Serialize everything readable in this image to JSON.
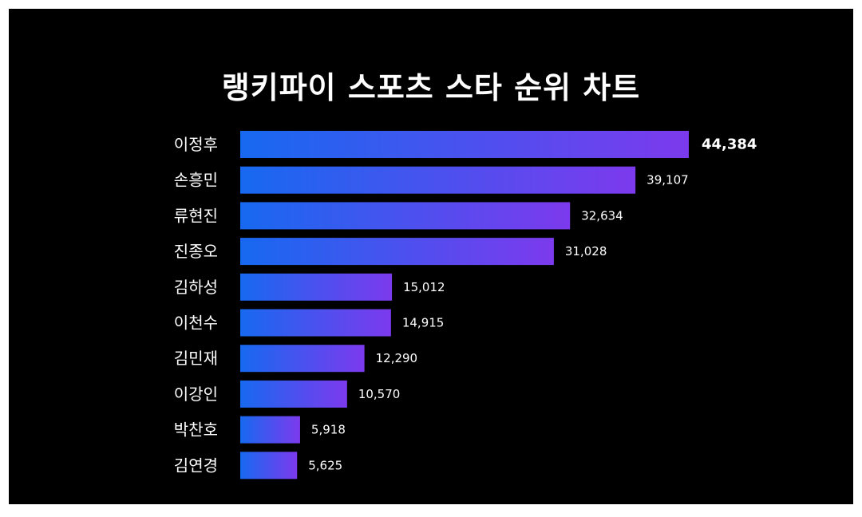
{
  "chart_data": {
    "type": "bar",
    "orientation": "horizontal",
    "title": "랭키파이 스포츠 스타 순위 차트",
    "categories": [
      "이정후",
      "손흥민",
      "류현진",
      "진종오",
      "김하성",
      "이천수",
      "김민재",
      "이강인",
      "박찬호",
      "김연경"
    ],
    "values": [
      44384,
      39107,
      32634,
      31028,
      15012,
      14915,
      12290,
      10570,
      5918,
      5625
    ],
    "value_labels": [
      "44,384",
      "39,107",
      "32,634",
      "31,028",
      "15,012",
      "14,915",
      "12,290",
      "10,570",
      "5,918",
      "5,625"
    ],
    "xlim": [
      0,
      44384
    ],
    "grid": false,
    "gradient": [
      "#1769f0",
      "#7c3aed"
    ],
    "background_color": "#000000",
    "text_color": "#ffffff"
  }
}
